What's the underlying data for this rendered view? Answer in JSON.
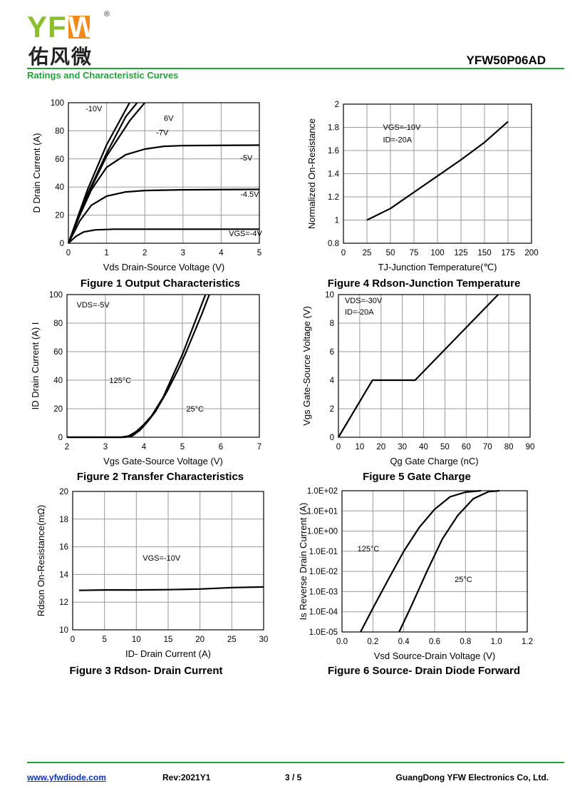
{
  "header": {
    "logo_en": "YF",
    "logo_u": "W",
    "logo_reg": "®",
    "logo_cn": "佑风微",
    "part_number": "YFW50P06AD",
    "section_title": "Ratings and Characteristic Curves"
  },
  "colors": {
    "brand_green": "#22a33a",
    "logo_green": "#8dbf2c",
    "logo_orange": "#f08a1c",
    "link_blue": "#1030c0"
  },
  "figures": [
    {
      "caption": "Figure 1 Output Characteristics",
      "xlabel": "Vds Drain-Source Voltage (V)",
      "ylabel": "D Drain Current (A)"
    },
    {
      "caption": "Figure 4 Rdson-Junction Temperature",
      "xlabel": "TJ-Junction Temperature(℃)",
      "ylabel": "Normalized On-Resistance"
    },
    {
      "caption": "Figure 2 Transfer Characteristics",
      "xlabel": "Vgs Gate-Source Voltage (V)",
      "ylabel": "ID Drain Current (A) I"
    },
    {
      "caption": "Figure 5 Gate Charge",
      "xlabel": "Qg Gate Charge (nC)",
      "ylabel": "Vgs Gate-Source Voltage (V)"
    },
    {
      "caption": "Figure 3 Rdson- Drain Current",
      "xlabel": "ID- Drain Current (A)",
      "ylabel": "Rdson On-Resistance(mΩ)"
    },
    {
      "caption": "Figure 6 Source- Drain Diode Forward",
      "xlabel": "Vsd Source-Drain Voltage (V)",
      "ylabel": "Is Reverse Drain Current (A)"
    }
  ],
  "chart_data": [
    {
      "id": "fig1",
      "type": "line",
      "xlabel": "Vds Drain-Source Voltage (V)",
      "ylabel": "D Drain Current (A)",
      "xlim": [
        0,
        5
      ],
      "ylim": [
        0,
        100
      ],
      "xticks": [
        0,
        1,
        2,
        3,
        4,
        5
      ],
      "yticks": [
        0,
        20,
        40,
        60,
        80,
        100
      ],
      "grid": true,
      "series": [
        {
          "name": "-10V",
          "points": [
            [
              0,
              0
            ],
            [
              0.5,
              38
            ],
            [
              1,
              70
            ],
            [
              1.6,
              100
            ]
          ]
        },
        {
          "name": "6V",
          "points": [
            [
              0,
              0
            ],
            [
              0.5,
              35
            ],
            [
              1,
              64
            ],
            [
              1.5,
              90
            ],
            [
              1.8,
              100
            ]
          ]
        },
        {
          "name": "-7V",
          "points": [
            [
              0,
              0
            ],
            [
              0.5,
              34
            ],
            [
              1,
              62
            ],
            [
              1.6,
              87
            ],
            [
              2,
              100
            ]
          ]
        },
        {
          "name": "-5V",
          "points": [
            [
              0,
              0
            ],
            [
              0.3,
              20
            ],
            [
              0.6,
              38
            ],
            [
              1,
              54
            ],
            [
              1.5,
              63
            ],
            [
              2,
              67
            ],
            [
              2.5,
              69
            ],
            [
              3,
              69.5
            ],
            [
              5,
              69.8
            ]
          ]
        },
        {
          "name": "-4.5V",
          "points": [
            [
              0,
              0
            ],
            [
              0.3,
              16
            ],
            [
              0.6,
              27
            ],
            [
              1,
              33.5
            ],
            [
              1.5,
              36.5
            ],
            [
              2,
              37.5
            ],
            [
              3,
              38
            ],
            [
              5,
              38.3
            ]
          ]
        },
        {
          "name": "VGS=-4V",
          "points": [
            [
              0,
              0
            ],
            [
              0.2,
              5
            ],
            [
              0.4,
              8
            ],
            [
              0.7,
              9.5
            ],
            [
              1.2,
              10
            ],
            [
              5,
              10
            ]
          ]
        }
      ],
      "annotations": [
        {
          "text": "-10V",
          "x": 0.45,
          "y": 94
        },
        {
          "text": "6V",
          "x": 2.5,
          "y": 87
        },
        {
          "text": "-7V",
          "x": 2.3,
          "y": 77
        },
        {
          "text": "-5V",
          "x": 4.5,
          "y": 59
        },
        {
          "text": "-4.5V",
          "x": 4.5,
          "y": 33
        },
        {
          "text": "VGS=-4V",
          "x": 4.2,
          "y": 5
        }
      ]
    },
    {
      "id": "fig4",
      "type": "line",
      "xlabel": "TJ-Junction Temperature(℃)",
      "ylabel": "Normalized On-Resistance",
      "xlim": [
        0,
        200
      ],
      "ylim": [
        0.8,
        2
      ],
      "xticks": [
        0,
        25,
        50,
        75,
        100,
        125,
        150,
        175,
        200
      ],
      "yticks": [
        0.8,
        1,
        1.2,
        1.4,
        1.6,
        1.8,
        2
      ],
      "grid": true,
      "series": [
        {
          "name": "",
          "points": [
            [
              25,
              1.0
            ],
            [
              50,
              1.1
            ],
            [
              75,
              1.24
            ],
            [
              100,
              1.38
            ],
            [
              125,
              1.52
            ],
            [
              150,
              1.67
            ],
            [
              175,
              1.85
            ]
          ]
        }
      ],
      "annotations": [
        {
          "text": "VGS=-10V",
          "x": 42,
          "y": 1.78
        },
        {
          "text": "ID=-20A",
          "x": 42,
          "y": 1.67
        }
      ]
    },
    {
      "id": "fig2",
      "type": "line",
      "xlabel": "Vgs Gate-Source Voltage (V)",
      "ylabel": "ID Drain Current (A) I",
      "xlim": [
        2,
        7
      ],
      "ylim": [
        0,
        100
      ],
      "xticks": [
        2,
        3,
        4,
        5,
        6,
        7
      ],
      "yticks": [
        0,
        20,
        40,
        60,
        80,
        100
      ],
      "grid": true,
      "series": [
        {
          "name": "125°C",
          "points": [
            [
              2,
              0
            ],
            [
              3.4,
              0
            ],
            [
              3.6,
              0.8
            ],
            [
              3.8,
              4
            ],
            [
              4,
              9
            ],
            [
              4.2,
              15
            ],
            [
              4.5,
              28
            ],
            [
              4.8,
              46
            ],
            [
              5,
              58
            ],
            [
              5.2,
              72
            ],
            [
              5.4,
              86
            ],
            [
              5.6,
              100
            ]
          ]
        },
        {
          "name": "25°C",
          "points": [
            [
              2,
              0
            ],
            [
              3.5,
              0
            ],
            [
              3.7,
              1
            ],
            [
              3.9,
              5
            ],
            [
              4.1,
              11
            ],
            [
              4.3,
              18
            ],
            [
              4.6,
              32
            ],
            [
              4.9,
              48
            ],
            [
              5.1,
              60
            ],
            [
              5.3,
              73
            ],
            [
              5.5,
              86
            ],
            [
              5.7,
              100
            ]
          ]
        }
      ],
      "annotations": [
        {
          "text": "VDS=-5V",
          "x": 2.25,
          "y": 91
        },
        {
          "text": "125°C",
          "x": 3.1,
          "y": 38
        },
        {
          "text": "25°C",
          "x": 5.1,
          "y": 18
        }
      ]
    },
    {
      "id": "fig5",
      "type": "line",
      "xlabel": "Qg Gate Charge (nC)",
      "ylabel": "Vgs Gate-Source Voltage (V)",
      "xlim": [
        0,
        90
      ],
      "ylim": [
        0,
        10
      ],
      "xticks": [
        0,
        10,
        20,
        30,
        40,
        50,
        60,
        70,
        80,
        90
      ],
      "yticks": [
        0,
        2,
        4,
        6,
        8,
        10
      ],
      "grid": true,
      "series": [
        {
          "name": "",
          "points": [
            [
              0,
              0
            ],
            [
              16,
              4
            ],
            [
              36,
              4
            ],
            [
              75,
              10
            ]
          ]
        }
      ],
      "annotations": [
        {
          "text": "VDS=-30V",
          "x": 3,
          "y": 9.4
        },
        {
          "text": "ID=-20A",
          "x": 3,
          "y": 8.6
        }
      ]
    },
    {
      "id": "fig3",
      "type": "line",
      "xlabel": "ID- Drain Current (A)",
      "ylabel": "Rdson On-Resistance(mΩ)",
      "xlim": [
        0,
        30
      ],
      "ylim": [
        10,
        20
      ],
      "xticks": [
        0,
        5,
        10,
        15,
        20,
        25,
        30
      ],
      "yticks": [
        10,
        12,
        14,
        16,
        18,
        20
      ],
      "grid": true,
      "series": [
        {
          "name": "",
          "points": [
            [
              1,
              12.85
            ],
            [
              5,
              12.88
            ],
            [
              10,
              12.88
            ],
            [
              15,
              12.9
            ],
            [
              20,
              12.95
            ],
            [
              25,
              13.05
            ],
            [
              30,
              13.1
            ]
          ]
        }
      ],
      "annotations": [
        {
          "text": "VGS=-10V",
          "x": 11,
          "y": 15
        }
      ]
    },
    {
      "id": "fig6",
      "type": "line",
      "yscale": "log",
      "xlabel": "Vsd Source-Drain Voltage (V)",
      "ylabel": "Is Reverse Drain Current (A)",
      "xlim": [
        0,
        1.2
      ],
      "ylim": [
        1e-05,
        100
      ],
      "xticks": [
        0,
        0.2,
        0.4,
        0.6,
        0.8,
        1,
        1.2
      ],
      "xtick_labels": [
        "0.0",
        "0.2",
        "0.4",
        "0.6",
        "0.8",
        "1.0",
        "1.2"
      ],
      "yticks": [
        1e-05,
        0.0001,
        0.001,
        0.01,
        0.1,
        1,
        10,
        100
      ],
      "ytick_labels": [
        "1.0E-05",
        "1.0E-04",
        "1.0E-03",
        "1.0E-02",
        "1.0E-01",
        "1.0E+00",
        "1.0E+01",
        "1.0E+02"
      ],
      "grid": true,
      "series": [
        {
          "name": "125°C",
          "points": [
            [
              0.12,
              1e-05
            ],
            [
              0.2,
              0.00015
            ],
            [
              0.3,
              0.004
            ],
            [
              0.4,
              0.1
            ],
            [
              0.5,
              1.5
            ],
            [
              0.6,
              12
            ],
            [
              0.7,
              50
            ],
            [
              0.8,
              85
            ],
            [
              0.9,
              100
            ]
          ]
        },
        {
          "name": "25°C",
          "points": [
            [
              0.37,
              1e-05
            ],
            [
              0.45,
              0.0002
            ],
            [
              0.55,
              0.01
            ],
            [
              0.65,
              0.4
            ],
            [
              0.75,
              6
            ],
            [
              0.85,
              40
            ],
            [
              0.95,
              90
            ],
            [
              1.02,
              100
            ]
          ]
        }
      ],
      "annotations": [
        {
          "text": "125°C",
          "x": 0.1,
          "y": 0.1
        },
        {
          "text": "25°C",
          "x": 0.73,
          "y": 0.003
        }
      ]
    }
  ],
  "footer": {
    "website": "www.yfwdiode.com",
    "rev": "Rev:2021Y1",
    "page": "3 / 5",
    "company": "GuangDong YFW Electronics Co, Ltd."
  }
}
